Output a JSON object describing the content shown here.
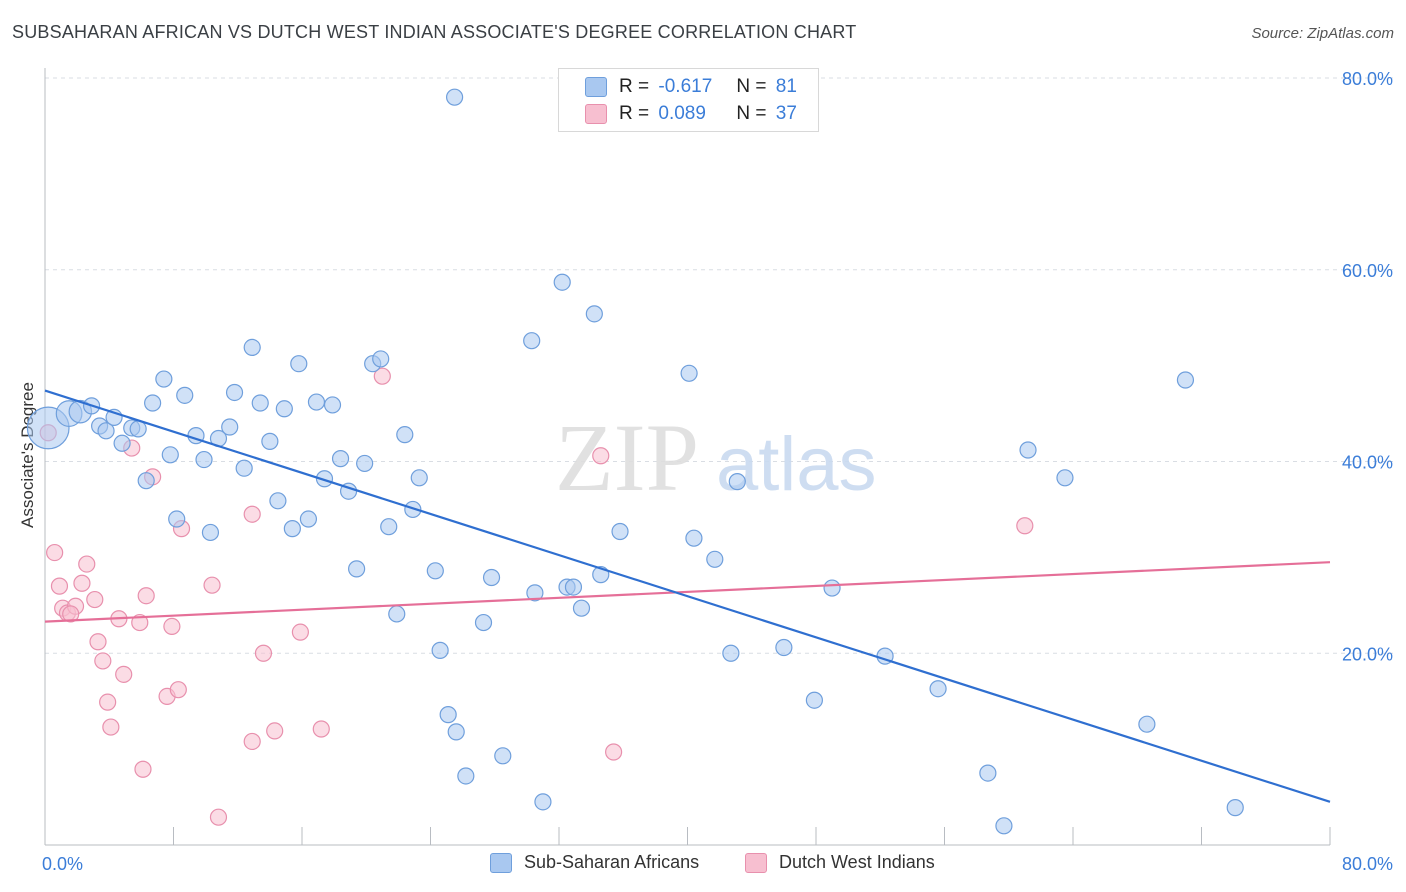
{
  "title": "SUBSAHARAN AFRICAN VS DUTCH WEST INDIAN ASSOCIATE'S DEGREE CORRELATION CHART",
  "source": "Source: ZipAtlas.com",
  "watermark": {
    "zip": "ZIP",
    "atlas": "atlas"
  },
  "legend_top": {
    "rows": [
      {
        "r_label": "R =",
        "r_value": "-0.617",
        "n_label": "N =",
        "n_value": "81"
      },
      {
        "r_label": "R =",
        "r_value": "0.089",
        "n_label": "N =",
        "n_value": "37"
      }
    ]
  },
  "colors": {
    "blue_fill": "#a9c8f0",
    "blue_stroke": "#6f9fdc",
    "blue_line": "#2f6fd0",
    "pink_fill": "#f7bfd0",
    "pink_stroke": "#e890ad",
    "pink_line": "#e56f98",
    "tick_label": "#3b7dd8",
    "grid": "#d9dde3"
  },
  "chart_data": {
    "type": "scatter",
    "title": "SUBSAHARAN AFRICAN VS DUTCH WEST INDIAN ASSOCIATE'S DEGREE CORRELATION CHART",
    "xlabel": "",
    "ylabel": "Associate's Degree",
    "xlim": [
      0,
      80
    ],
    "ylim": [
      0,
      80
    ],
    "x_tick_labels": [
      "0.0%",
      "80.0%"
    ],
    "y_tick_labels": [
      "20.0%",
      "40.0%",
      "60.0%",
      "80.0%"
    ],
    "y_ticks": [
      20,
      40,
      60,
      80
    ],
    "grid": true,
    "legend_placement": "top-center",
    "series": [
      {
        "name": "Sub-Saharan Africans",
        "r": -0.617,
        "n": 81,
        "trend": {
          "x": [
            0,
            80
          ],
          "y": [
            47.4,
            4.5
          ]
        },
        "points": [
          [
            0.2,
            43.5,
            2.6
          ],
          [
            1.5,
            45.0,
            1.6
          ],
          [
            2.2,
            45.2,
            1.4
          ],
          [
            2.9,
            45.8,
            1.0
          ],
          [
            3.4,
            43.7,
            1.0
          ],
          [
            3.8,
            43.2,
            1.0
          ],
          [
            4.3,
            44.6,
            1.0
          ],
          [
            4.8,
            41.9,
            1.0
          ],
          [
            5.4,
            43.5,
            1.0
          ],
          [
            5.8,
            43.4,
            1.0
          ],
          [
            6.3,
            38.0,
            1.0
          ],
          [
            6.7,
            46.1,
            1.0
          ],
          [
            7.4,
            48.6,
            1.0
          ],
          [
            7.8,
            40.7,
            1.0
          ],
          [
            8.2,
            34.0,
            1.0
          ],
          [
            8.7,
            46.9,
            1.0
          ],
          [
            9.4,
            42.7,
            1.0
          ],
          [
            9.9,
            40.2,
            1.0
          ],
          [
            10.3,
            32.6,
            1.0
          ],
          [
            10.8,
            42.4,
            1.0
          ],
          [
            11.5,
            43.6,
            1.0
          ],
          [
            11.8,
            47.2,
            1.0
          ],
          [
            12.4,
            39.3,
            1.0
          ],
          [
            12.9,
            51.9,
            1.0
          ],
          [
            13.4,
            46.1,
            1.0
          ],
          [
            14.0,
            42.1,
            1.0
          ],
          [
            14.5,
            35.9,
            1.0
          ],
          [
            14.9,
            45.5,
            1.0
          ],
          [
            15.4,
            33.0,
            1.0
          ],
          [
            15.8,
            50.2,
            1.0
          ],
          [
            16.4,
            34.0,
            1.0
          ],
          [
            16.9,
            46.2,
            1.0
          ],
          [
            17.4,
            38.2,
            1.0
          ],
          [
            17.9,
            45.9,
            1.0
          ],
          [
            18.4,
            40.3,
            1.0
          ],
          [
            18.9,
            36.9,
            1.0
          ],
          [
            19.4,
            28.8,
            1.0
          ],
          [
            19.9,
            39.8,
            1.0
          ],
          [
            20.4,
            50.2,
            1.0
          ],
          [
            20.9,
            50.7,
            1.0
          ],
          [
            21.4,
            33.2,
            1.0
          ],
          [
            21.9,
            24.1,
            1.0
          ],
          [
            22.4,
            42.8,
            1.0
          ],
          [
            22.9,
            35.0,
            1.0
          ],
          [
            23.3,
            38.3,
            1.0
          ],
          [
            24.3,
            28.6,
            1.0
          ],
          [
            24.6,
            20.3,
            1.0
          ],
          [
            25.1,
            13.6,
            1.0
          ],
          [
            25.6,
            11.8,
            1.0
          ],
          [
            25.5,
            78.0,
            1.0
          ],
          [
            26.2,
            7.2,
            1.0
          ],
          [
            27.3,
            23.2,
            1.0
          ],
          [
            27.8,
            27.9,
            1.0
          ],
          [
            28.5,
            9.3,
            1.0
          ],
          [
            30.3,
            52.6,
            1.0
          ],
          [
            30.5,
            26.3,
            1.0
          ],
          [
            31.0,
            4.5,
            1.0
          ],
          [
            32.2,
            58.7,
            1.0
          ],
          [
            32.5,
            26.9,
            1.0
          ],
          [
            32.9,
            26.9,
            1.0
          ],
          [
            33.4,
            24.7,
            1.0
          ],
          [
            34.2,
            55.4,
            1.0
          ],
          [
            34.6,
            28.2,
            1.0
          ],
          [
            35.8,
            32.7,
            1.0
          ],
          [
            40.1,
            49.2,
            1.0
          ],
          [
            40.4,
            32.0,
            1.0
          ],
          [
            41.7,
            29.8,
            1.0
          ],
          [
            42.7,
            20.0,
            1.0
          ],
          [
            43.1,
            37.9,
            1.0
          ],
          [
            46.0,
            20.6,
            1.0
          ],
          [
            47.9,
            15.1,
            1.0
          ],
          [
            49.0,
            26.8,
            1.0
          ],
          [
            52.3,
            19.7,
            1.0
          ],
          [
            55.6,
            16.3,
            1.0
          ],
          [
            58.7,
            7.5,
            1.0
          ],
          [
            59.7,
            2.0,
            1.0
          ],
          [
            61.2,
            41.2,
            1.0
          ],
          [
            68.6,
            12.6,
            1.0
          ],
          [
            71.0,
            48.5,
            1.0
          ],
          [
            74.1,
            3.9,
            1.0
          ],
          [
            63.5,
            38.3,
            1.0
          ]
        ]
      },
      {
        "name": "Dutch West Indians",
        "r": 0.089,
        "n": 37,
        "trend": {
          "x": [
            0,
            80
          ],
          "y": [
            23.3,
            29.5
          ]
        },
        "points": [
          [
            0.2,
            43.0,
            1.0
          ],
          [
            0.6,
            30.5,
            1.0
          ],
          [
            0.9,
            27.0,
            1.0
          ],
          [
            1.1,
            24.7,
            1.0
          ],
          [
            1.4,
            24.2,
            1.0
          ],
          [
            1.9,
            24.9,
            1.0
          ],
          [
            2.3,
            27.3,
            1.0
          ],
          [
            2.6,
            29.3,
            1.0
          ],
          [
            3.1,
            25.6,
            1.0
          ],
          [
            3.3,
            21.2,
            1.0
          ],
          [
            3.6,
            19.2,
            1.0
          ],
          [
            3.9,
            14.9,
            1.0
          ],
          [
            4.1,
            12.3,
            1.0
          ],
          [
            4.6,
            23.6,
            1.0
          ],
          [
            4.9,
            17.8,
            1.0
          ],
          [
            5.4,
            41.4,
            1.0
          ],
          [
            5.9,
            23.2,
            1.0
          ],
          [
            6.1,
            7.9,
            1.0
          ],
          [
            6.3,
            26.0,
            1.0
          ],
          [
            6.7,
            38.4,
            1.0
          ],
          [
            7.6,
            15.5,
            1.0
          ],
          [
            7.9,
            22.8,
            1.0
          ],
          [
            8.3,
            16.2,
            1.0
          ],
          [
            8.5,
            33.0,
            1.0
          ],
          [
            10.4,
            27.1,
            1.0
          ],
          [
            10.8,
            2.9,
            1.0
          ],
          [
            12.9,
            34.5,
            1.0
          ],
          [
            12.9,
            10.8,
            1.0
          ],
          [
            13.6,
            20.0,
            1.0
          ],
          [
            14.3,
            11.9,
            1.0
          ],
          [
            15.9,
            22.2,
            1.0
          ],
          [
            17.2,
            12.1,
            1.0
          ],
          [
            21.0,
            48.9,
            1.0
          ],
          [
            34.6,
            40.6,
            1.0
          ],
          [
            35.4,
            9.7,
            1.0
          ],
          [
            61.0,
            33.3,
            1.0
          ],
          [
            1.6,
            24.1,
            1.0
          ]
        ]
      }
    ]
  },
  "bottom_legend": [
    {
      "label": "Sub-Saharan Africans"
    },
    {
      "label": "Dutch West Indians"
    }
  ]
}
